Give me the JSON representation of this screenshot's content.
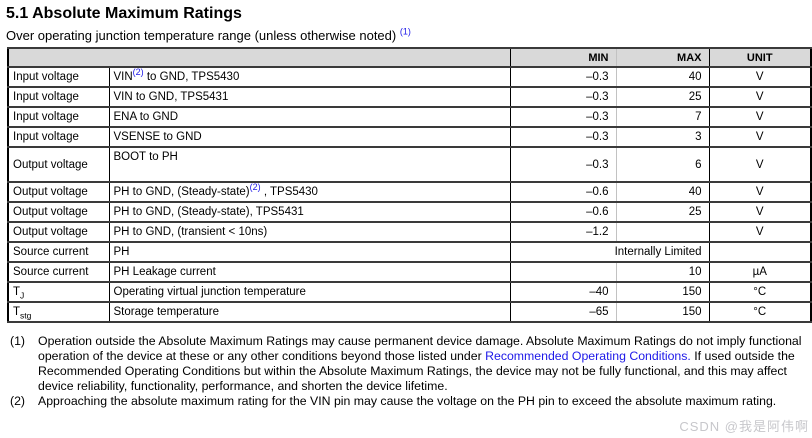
{
  "page": {
    "title": "5.1 Absolute Maximum Ratings",
    "subtitle": "Over operating junction temperature range (unless otherwise noted)",
    "note_ref": "(1)"
  },
  "table": {
    "col_headers": [
      "MIN",
      "MAX",
      "UNIT"
    ],
    "rows": [
      {
        "category": [
          {
            "text": "Input voltage"
          }
        ],
        "description": [
          {
            "text": "VIN"
          },
          {
            "text": "(2)",
            "sup": true,
            "link": true
          },
          {
            "text": " to GND, TPS5430"
          }
        ],
        "min": "–0.3",
        "max": "40",
        "unit": "V"
      },
      {
        "category": [
          {
            "text": "Input voltage"
          }
        ],
        "description": [
          {
            "text": "VIN to GND, TPS5431"
          }
        ],
        "min": "–0.3",
        "max": "25",
        "unit": "V"
      },
      {
        "category": [
          {
            "text": "Input voltage"
          }
        ],
        "description": [
          {
            "text": "ENA to GND"
          }
        ],
        "min": "–0.3",
        "max": "7",
        "unit": "V"
      },
      {
        "category": [
          {
            "text": "Input voltage"
          }
        ],
        "description": [
          {
            "text": "VSENSE to GND"
          }
        ],
        "min": "–0.3",
        "max": "3",
        "unit": "V"
      },
      {
        "category": [
          {
            "text": "Output voltage"
          }
        ],
        "description": [
          {
            "text": "BOOT to PH"
          }
        ],
        "min": "–0.3",
        "max": "6",
        "unit": "V",
        "tall": true
      },
      {
        "category": [
          {
            "text": "Output voltage"
          }
        ],
        "description": [
          {
            "text": "PH to GND, (Steady-state)"
          },
          {
            "text": "(2)",
            "sup": true,
            "link": true
          },
          {
            "text": " , TPS5430"
          }
        ],
        "min": "–0.6",
        "max": "40",
        "unit": "V"
      },
      {
        "category": [
          {
            "text": "Output voltage"
          }
        ],
        "description": [
          {
            "text": "PH to GND, (Steady-state), TPS5431"
          }
        ],
        "min": "–0.6",
        "max": "25",
        "unit": "V"
      },
      {
        "category": [
          {
            "text": "Output voltage"
          }
        ],
        "description": [
          {
            "text": "PH to GND, (transient < 10ns)"
          }
        ],
        "min": "–1.2",
        "max": "",
        "unit": "V"
      },
      {
        "category": [
          {
            "text": "Source current"
          }
        ],
        "description": [
          {
            "text": "PH"
          }
        ],
        "merged_minmax": "Internally Limited",
        "unit": ""
      },
      {
        "category": [
          {
            "text": "Source current"
          }
        ],
        "description": [
          {
            "text": "PH Leakage current"
          }
        ],
        "min": "",
        "max": "10",
        "unit": "µA"
      },
      {
        "category": [
          {
            "text": "T"
          },
          {
            "text": "J",
            "sub": true
          }
        ],
        "description": [
          {
            "text": "Operating virtual junction temperature"
          }
        ],
        "min": "–40",
        "max": "150",
        "unit": "°C"
      },
      {
        "category": [
          {
            "text": "T"
          },
          {
            "text": "stg",
            "sub": true
          }
        ],
        "description": [
          {
            "text": "Storage temperature"
          }
        ],
        "min": "–65",
        "max": "150",
        "unit": "°C"
      }
    ]
  },
  "footnotes": [
    {
      "marker": "(1)",
      "parts": [
        {
          "text": "Operation outside the Absolute Maximum Ratings may cause permanent device damage. Absolute Maximum Ratings do not imply functional operation of the device at these or any other conditions beyond those listed under "
        },
        {
          "text": "Recommended Operating Conditions.",
          "link": true
        },
        {
          "text": " If used outside the Recommended Operating Conditions but within the Absolute Maximum Ratings, the device may not be fully functional, and this may affect device reliability, functionality, performance, and shorten the device lifetime."
        }
      ]
    },
    {
      "marker": "(2)",
      "parts": [
        {
          "text": "Approaching the absolute maximum rating for the VIN pin may cause the voltage on the PH pin to exceed the absolute maximum rating."
        }
      ]
    }
  ],
  "watermark": "CSDN @我是阿伟啊",
  "colors": {
    "link_blue": "#1d18e8",
    "header_bg": "#d9d9d9",
    "watermark_gray": "#c7c7cb"
  }
}
